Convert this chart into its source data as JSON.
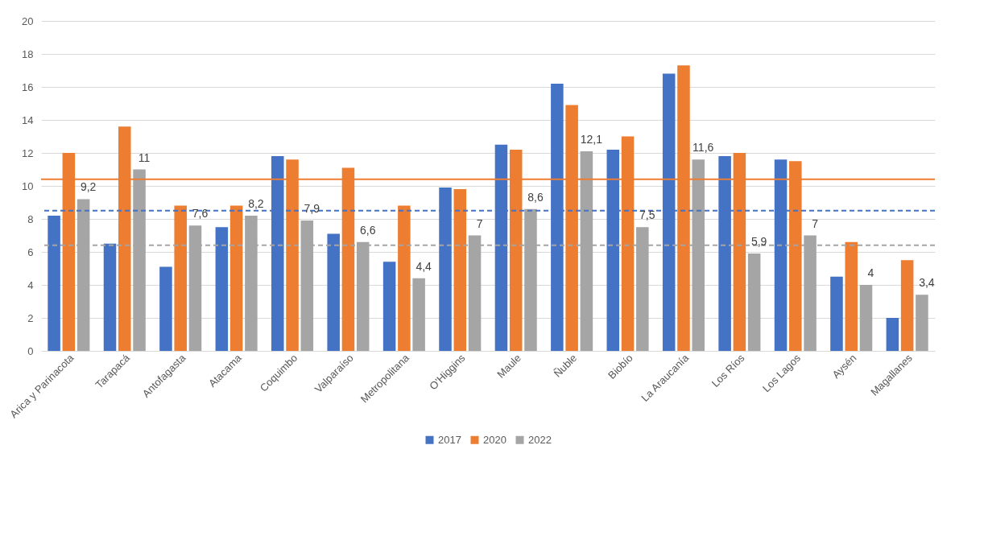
{
  "chart_data": {
    "type": "bar",
    "categories": [
      "Arica y Parinacota",
      "Tarapacá",
      "Antofagasta",
      "Atacama",
      "Coquimbo",
      "Valparaíso",
      "Metropolitana",
      "O'Higgins",
      "Maule",
      "Ñuble",
      "Biobío",
      "La Araucanía",
      "Los Ríos",
      "Los Lagos",
      "Aysén",
      "Magallanes"
    ],
    "series": [
      {
        "name": "2017",
        "color": "#4472c4",
        "values": [
          8.2,
          6.5,
          5.1,
          7.5,
          11.8,
          7.1,
          5.4,
          9.9,
          12.5,
          16.2,
          12.2,
          16.8,
          11.8,
          11.6,
          4.5,
          2.0
        ]
      },
      {
        "name": "2020",
        "color": "#ed7d31",
        "values": [
          12.0,
          13.6,
          8.8,
          8.8,
          11.6,
          11.1,
          8.8,
          9.8,
          12.2,
          14.9,
          13.0,
          17.3,
          12.0,
          11.5,
          6.6,
          5.5
        ]
      },
      {
        "name": "2022",
        "color": "#a5a5a5",
        "values": [
          9.2,
          11,
          7.6,
          8.2,
          7.9,
          6.6,
          4.4,
          7,
          8.6,
          12.1,
          7.5,
          11.6,
          5.9,
          7,
          4,
          3.4
        ],
        "value_labels": [
          "9,2",
          "11",
          "7,6",
          "8,2",
          "7,9",
          "6,6",
          "4,4",
          "7",
          "8,6",
          "12,1",
          "7,5",
          "11,6",
          "5,9",
          "7",
          "4",
          "3,4"
        ]
      }
    ],
    "ylim": [
      0,
      20
    ],
    "yticks": [
      0,
      2,
      4,
      6,
      8,
      10,
      12,
      14,
      16,
      18,
      20
    ],
    "grid": "y",
    "legend": "bottom",
    "ref_lines": [
      {
        "axis": "y",
        "value": 10.4,
        "color": "#ed7d31",
        "line_style": "solid"
      },
      {
        "axis": "y",
        "value": 8.5,
        "color": "#4472c4",
        "line_style": "dashed"
      },
      {
        "axis": "y",
        "value": 6.4,
        "color": "#a5a5a5",
        "line_style": "dashed"
      }
    ]
  }
}
